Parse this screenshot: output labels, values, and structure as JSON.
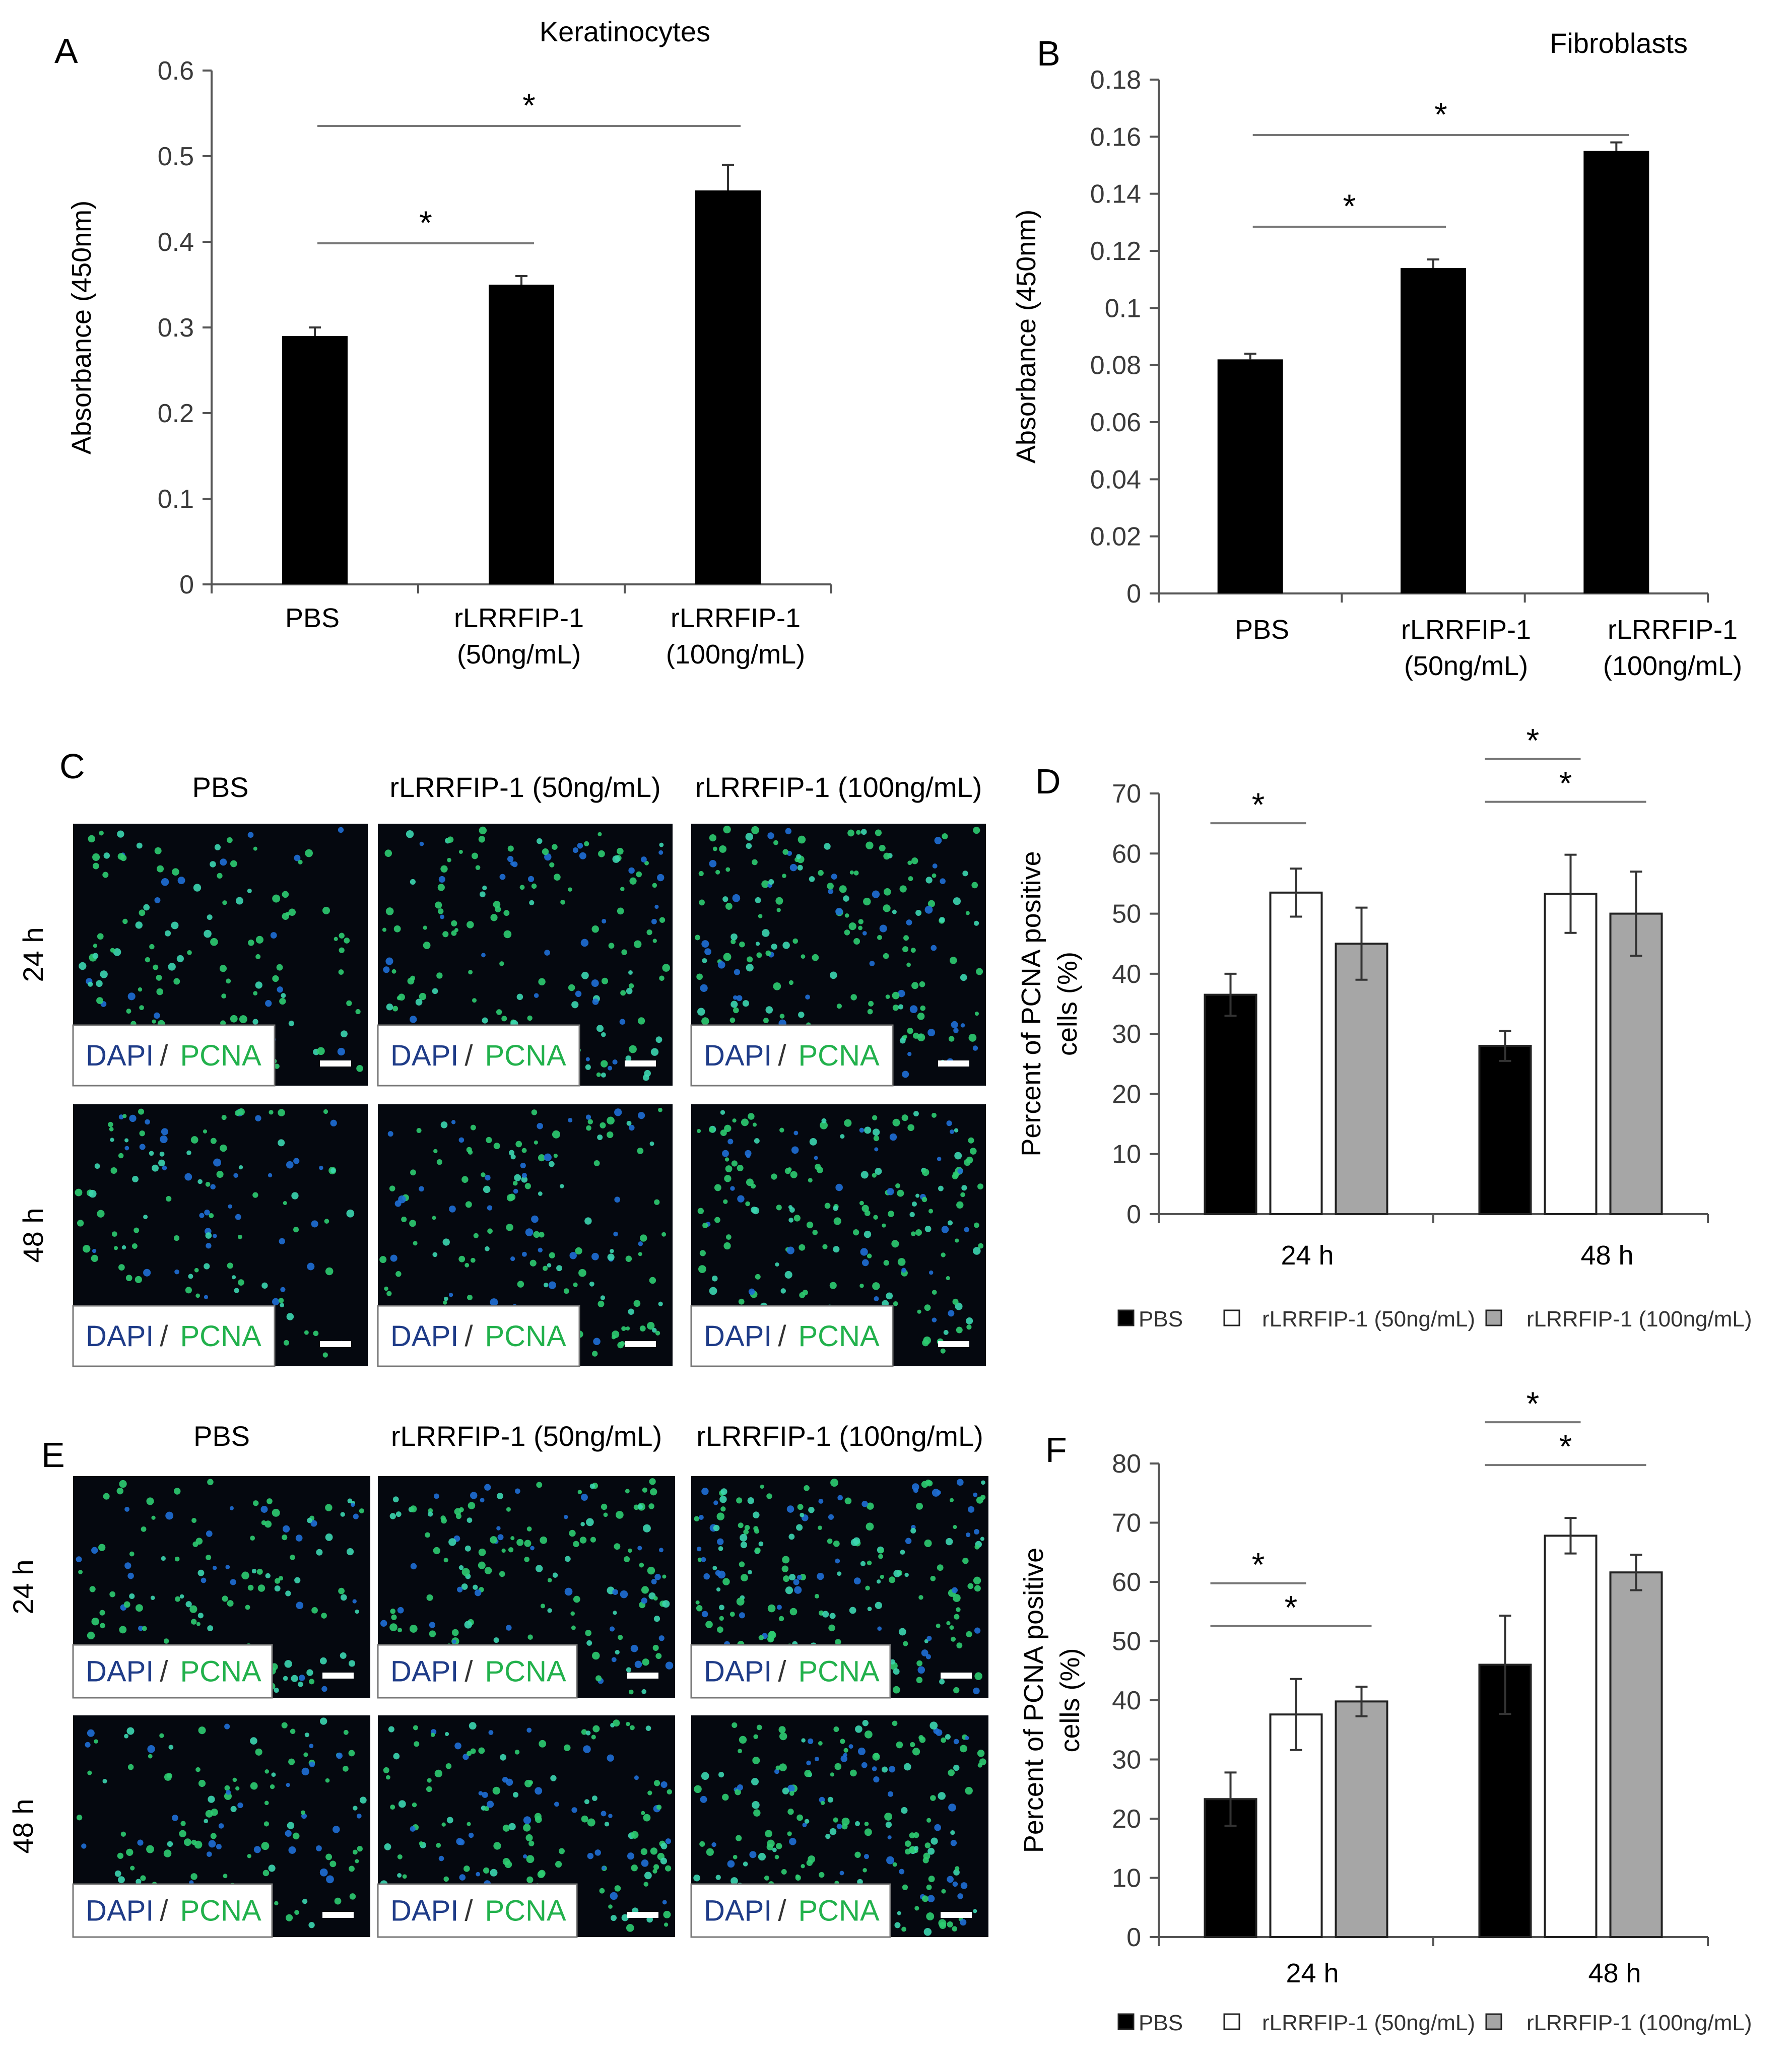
{
  "panels": [
    {
      "id": "A",
      "label": "A"
    },
    {
      "id": "B",
      "label": "B"
    },
    {
      "id": "C",
      "label": "C"
    },
    {
      "id": "D",
      "label": "D"
    },
    {
      "id": "E",
      "label": "E"
    },
    {
      "id": "F",
      "label": "F"
    }
  ],
  "image_panels": [
    {
      "id": "C",
      "column_titles": [
        "PBS",
        "rLRRFIP-1 (50ng/mL)",
        "rLRRFIP-1 (100ng/mL)"
      ],
      "row_labels": [
        "24 h",
        "48 h"
      ],
      "stain_label": {
        "dapi": "DAPI",
        "sep": "/",
        "pcna": "PCNA"
      }
    },
    {
      "id": "E",
      "column_titles": [
        "PBS",
        "rLRRFIP-1 (50ng/mL)",
        "rLRRFIP-1 (100ng/mL)"
      ],
      "row_labels": [
        "24 h",
        "48 h"
      ],
      "stain_label": {
        "dapi": "DAPI",
        "sep": "/",
        "pcna": "PCNA"
      }
    }
  ],
  "colors": {
    "black_bar": "#000000",
    "white_bar": "#ffffff",
    "gray_bar": "#a6a6a6",
    "dapi_text": "#1f3c88",
    "pcna_text": "#22b14c",
    "micrograph_bg": "#05080f"
  },
  "chart_data": [
    {
      "id": "A",
      "type": "bar",
      "title": "Keratinocytes",
      "xlabel": "",
      "ylabel": "Absorbance (450nm)",
      "categories": [
        "PBS",
        "rLRRFIP-1\n(50ng/mL)",
        "rLRRFIP-1\n(100ng/mL)"
      ],
      "values": [
        0.29,
        0.35,
        0.46
      ],
      "errors": [
        0.01,
        0.01,
        0.03
      ],
      "ylim": [
        0,
        0.6
      ],
      "yticks": [
        0,
        0.1,
        0.2,
        0.3,
        0.4,
        0.5,
        0.6
      ],
      "ytick_labels": [
        "0",
        "0.1",
        "0.2",
        "0.3",
        "0.4",
        "0.5",
        "0.6"
      ],
      "grid": false,
      "annotations": [
        {
          "text": "*",
          "from": 0,
          "to": 1
        },
        {
          "text": "*",
          "from": 0,
          "to": 2
        }
      ]
    },
    {
      "id": "B",
      "type": "bar",
      "title": "Fibroblasts",
      "xlabel": "",
      "ylabel": "Absorbance (450nm)",
      "categories": [
        "PBS",
        "rLRRFIP-1\n(50ng/mL)",
        "rLRRFIP-1\n(100ng/mL)"
      ],
      "values": [
        0.082,
        0.114,
        0.155
      ],
      "errors": [
        0.002,
        0.003,
        0.003
      ],
      "ylim": [
        0,
        0.18
      ],
      "yticks": [
        0,
        0.02,
        0.04,
        0.06,
        0.08,
        0.1,
        0.12,
        0.14,
        0.16,
        0.18
      ],
      "ytick_labels": [
        "0",
        "0.02",
        "0.04",
        "0.06",
        "0.08",
        "0.1",
        "0.12",
        "0.14",
        "0.16",
        "0.18"
      ],
      "grid": false,
      "annotations": [
        {
          "text": "*",
          "from": 0,
          "to": 1
        },
        {
          "text": "*",
          "from": 0,
          "to": 2
        }
      ]
    },
    {
      "id": "D",
      "type": "bar",
      "title": "",
      "xlabel": "",
      "ylabel": "Percent of PCNA positive\ncells (%)",
      "categories": [
        "24 h",
        "48 h"
      ],
      "series": [
        {
          "name": "PBS",
          "values": [
            36.5,
            28.0
          ],
          "errors": [
            3.5,
            2.5
          ]
        },
        {
          "name": "rLRRFIP-1 (50ng/mL)",
          "values": [
            53.5,
            53.3
          ],
          "errors": [
            4.0,
            6.5
          ]
        },
        {
          "name": "rLRRFIP-1 (100ng/mL)",
          "values": [
            45.0,
            50.0
          ],
          "errors": [
            6.0,
            7.0
          ]
        }
      ],
      "ylim": [
        0,
        70
      ],
      "yticks": [
        0,
        10,
        20,
        30,
        40,
        50,
        60,
        70
      ],
      "legend": "bottom",
      "grid": false,
      "annotations": [
        {
          "text": "*",
          "group": 0,
          "from": 0,
          "to": 1
        },
        {
          "text": "*",
          "group": 1,
          "from": 0,
          "to": 1
        },
        {
          "text": "*",
          "group": 1,
          "from": 0,
          "to": 2
        }
      ]
    },
    {
      "id": "F",
      "type": "bar",
      "title": "",
      "xlabel": "",
      "ylabel": "Percent of PCNA positive\ncells (%)",
      "categories": [
        "24 h",
        "48 h"
      ],
      "series": [
        {
          "name": "PBS",
          "values": [
            23.3,
            46.0
          ],
          "errors": [
            4.5,
            8.3
          ]
        },
        {
          "name": "rLRRFIP-1 (50ng/mL)",
          "values": [
            37.6,
            67.8
          ],
          "errors": [
            6.0,
            3.0
          ]
        },
        {
          "name": "rLRRFIP-1 (100ng/mL)",
          "values": [
            39.8,
            61.6
          ],
          "errors": [
            2.5,
            3.0
          ]
        }
      ],
      "ylim": [
        0,
        80
      ],
      "yticks": [
        0,
        10,
        20,
        30,
        40,
        50,
        60,
        70,
        80
      ],
      "legend": "bottom",
      "grid": false,
      "annotations": [
        {
          "text": "*",
          "group": 0,
          "from": 0,
          "to": 1
        },
        {
          "text": "*",
          "group": 0,
          "from": 0,
          "to": 2
        },
        {
          "text": "*",
          "group": 1,
          "from": 0,
          "to": 1
        },
        {
          "text": "*",
          "group": 1,
          "from": 0,
          "to": 2
        }
      ]
    }
  ]
}
